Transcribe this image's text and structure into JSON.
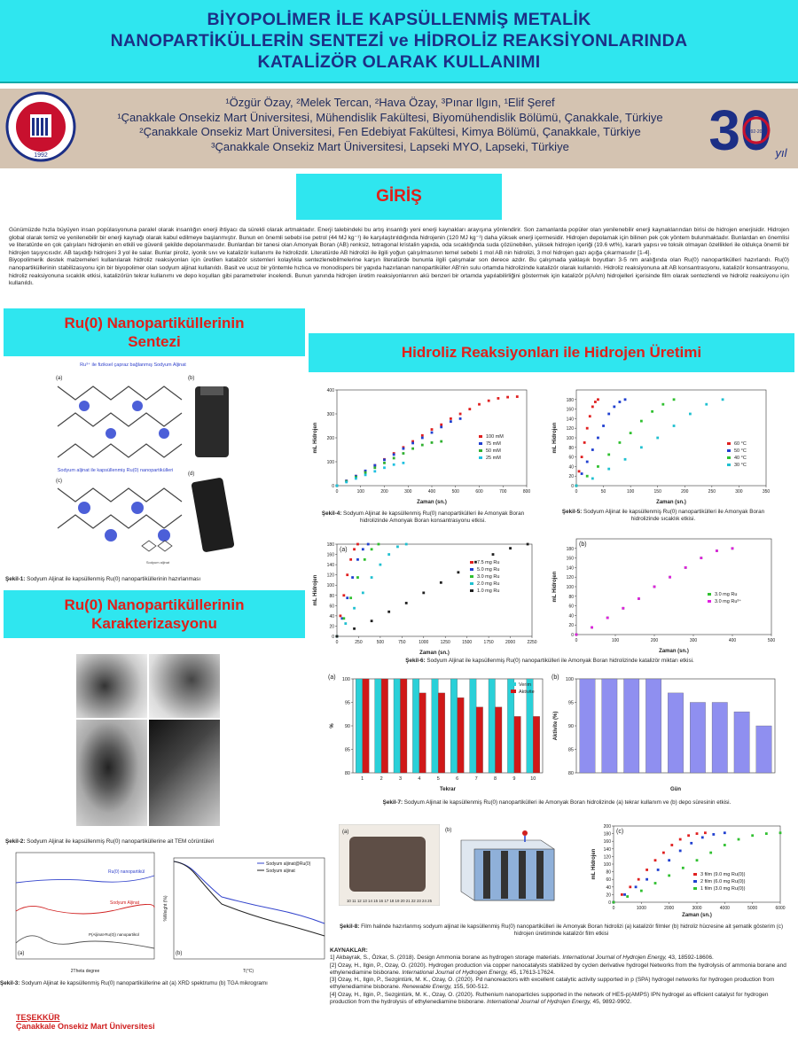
{
  "title": "BİYOPOLİMER İLE KAPSÜLLENMİŞ METALİK\nNANOPARTİKÜLLERİN SENTEZİ ve HİDROLİZ REAKSİYONLARINDA\nKATALİZÖR OLARAK KULLANIMI",
  "authors": "¹Özgür Özay, ²Melek Tercan, ²Hava Özay, ³Pınar Ilgın, ¹Elif Şeref",
  "affiliations": [
    "¹Çanakkale Onsekiz Mart Üniversitesi, Mühendislik Fakültesi, Biyomühendislik Bölümü, Çanakkale, Türkiye",
    "²Çanakkale Onsekiz Mart Üniversitesi, Fen Edebiyat Fakültesi, Kimya Bölümü, Çanakkale, Türkiye",
    "³Çanakkale Onsekiz Mart Üniversitesi, Lapseki MYO, Lapseki, Türkiye"
  ],
  "logo_left_text": "ÇANAKKALE ONSEKİZ MART ÜNİVERSİTESİ",
  "logo_left_year": "1992",
  "logo_right_text": "30",
  "logo_right_sub": "yıl",
  "logo_right_years": "1992-2022",
  "intro": {
    "heading": "GİRİŞ",
    "p1": "Günümüzde hızla büyüyen insan popülasyonuna paralel olarak insanlığın enerji ihtiyacı da sürekli olarak artmaktadır. Enerji talebindeki bu artış insanlığı yeni enerji kaynakları arayışına yönlendirir. Son zamanlarda popüler olan yenilenebilir enerji kaynaklarından birisi de hidrojen enerjisidir. Hidrojen global olarak temiz ve yenilenebilir bir enerji kaynağı olarak kabul edilmeye başlanmıştır. Bunun en önemli sebebi ise petrol (44 MJ kg⁻¹) ile karşılaştırıldığında hidrojenin (120 MJ kg⁻¹) daha yüksek enerji içermesidir. Hidrojen depolamak için bilinen pek çok yöntem bulunmaktadır. Bunlardan en önemlisi ve literatürde en çok çalışılanı hidrojenin en etkili ve güvenli şekilde depolanmasıdır. Bunlardan bir tanesi olan Amonyak Boran (AB) renksiz, tetragonal kristalin yapıda, oda sıcaklığında suda çözünebilen, yüksek hidrojen içeriği (19.6 wt%), kararlı yapısı ve toksik olmayan özellikleri ile oldukça önemli bir hidrojen taşıyıcısıdır. AB taşıdığı hidrojeni 3 yol ile salar. Bunlar piroliz, iyonik sıvı ve katalizör kullanımı ile hidrolizdir. Literatürde AB hidrolizi ile ilgili yoğun çalışılmasının temel sebebi 1 mol AB nin hidrolizi, 3 mol hidrojen gazı açığa çıkarmasıdır [1-4].",
    "p2": "Biyopolimerik destek malzemeleri kullanılarak hidroliz reaksiyonları için üretilen katalizör sistemleri kolaylıkla sentezlenebilmelerine karşın literatürde bununla ilgili çalışmalar son derece azdır. Bu çalışmada yaklaşık boyutları 3-5 nm aralığında olan Ru(0) nanopartikülleri hazırlandı. Ru(0) nanopartiküllerinin stabilizasyonu için bir biyopolimer olan sodyum aljinat kullanıldı. Basit ve ucuz bir yöntemle hızlıca ve monodispers bir yapıda hazırlanan nanopartiküller AB'nin sulu ortamda hidrolizinde katalizör olarak kullanıldı. Hidroliz reaksiyonuna alt AB konsantrasyonu, katalizör konsantrasyonu, hidroliz reaksiyonuna sıcaklık etkisi, katalizörün tekrar kullanımı ve depo koşulları gibi parametreler incelendi. Bunun yanında hidrojen üretim reaksiyonlarının akü benzeri bir ortamda yapılabilirliğini göstermek için katalizör p(AAm) hidrojelleri içerisinde film olarak sentezlendi ve hidroliz reaksiyonu için kullanıldı."
  },
  "sec_synthesis": "Ru(0) Nanopartiküllerinin\nSentezi",
  "sec_characterization": "Ru(0) Nanopartiküllerinin\nKarakterizasyonu",
  "sec_hydrolysis": "Hidroliz Reaksiyonları ile Hidrojen Üretimi",
  "fig1": {
    "label_a": "Ru³⁺ ile fiziksel çapraz bağlanmış Sodyum Aljinat",
    "label_c": "Sodyum aljinat ile kapsüllenmiş Ru(0) nanopartikülleri",
    "small_label": "Sodyum aljinat",
    "caption_bold": "Şekil-1:",
    "caption": "Sodyum Aljinat ile kapsüllenmiş Ru(0) nanopartiküllerinin hazırlanması"
  },
  "fig2": {
    "caption_bold": "Şekil-2:",
    "caption": "Sodyum Aljinat ile kapsüllenmiş Ru(0) nanopartiküllerine ait TEM cörüntüleri"
  },
  "fig3": {
    "caption_bold": "Şekil-3:",
    "caption": "Sodyum Aljinat ile kapsüllenmiş Ru(0) nanopartiküllerine ait (a) XRD spektrumu (b) TGA mikrogramı",
    "xrd_labels": [
      "Ru(0) nanopartikül",
      "Sodyum Aljinat",
      "P(Aljinat-Ru(0)) nanopartikül"
    ],
    "xrd_xlabel": "2Theta degree",
    "tga_legend": [
      "Sodyum aljinat@Ru(0)",
      "Sodyum aljinat"
    ],
    "tga_xlabel": "T(°C)",
    "tga_ylabel": "%Weight (%)",
    "tga_xticks": [
      "0",
      "100",
      "200",
      "300",
      "400",
      "500",
      "600",
      "700",
      "800",
      "900"
    ],
    "xrd_xticks": [
      "10",
      "20",
      "30",
      "40",
      "50",
      "60",
      "70",
      "80",
      "90"
    ]
  },
  "fig4": {
    "caption_bold": "Şekil-4:",
    "caption": "Sodyum Aljinat ile kapsüllenmiş Ru(0) nanopartikülleri ile Amonyak Boran hidrolizinde Amonyak Boran konsantrasyonu etkisi."
  },
  "fig5": {
    "caption_bold": "Şekil-5:",
    "caption": "Sodyum Aljinat ile kapsüllenmiş Ru(0) nanopartikülleri ile Amonyak Boran hidrolizinde sıcaklık etkisi."
  },
  "fig6": {
    "caption_bold": "Şekil-6:",
    "caption": "Sodyum Aljinat ile kapsüllenmiş Ru(0) nanopartikülleri ile Amonyak Boran hidrolizinde katalizör miktarı etkisi."
  },
  "fig7": {
    "caption_bold": "Şekil-7:",
    "caption": "Sodyum Aljinat ile kapsüllenmiş Ru(0) nanopartikülleri ile Amonyak Boran hidrolizinde (a) tekrar kullanım ve (b) depo süresinin etkisi."
  },
  "fig8": {
    "caption_bold": "Şekil-8:",
    "caption": "Film halinde hazırlanmış sodyum aljinat ile kapsüllenmiş Ru(0) nanopartikülleri ile Amonyak Boran hidrolizi (a) katalizör filmler (b) hidroliz hücresine ait şematik gösterim (c) hidrojen üretiminde katalizör film etkisi",
    "ruler": "10  11  12  13  14  15  16  17  18  19  20  21  22  23  24  25"
  },
  "refs": {
    "heading": "KAYNAKLAR:",
    "items": [
      [
        "1] Akbayrak, S., Özkar, S. (2018). Design Ammonia borane as hydrogen storage materials. ",
        "International Journal of Hydrojen Energy,",
        " 43, 18592-18606."
      ],
      [
        "[2] Ozay, H., Ilgin, P., Ozay, O. (2020). Hydrogen production via copper nanocatalysts stabilized by cyclen derivative hydrogel Networks from the hydrolysis of ammonia borane and ethylenediamine bisborane. ",
        "International Journal of Hydrogen Energy,",
        " 45, 17613-17624."
      ],
      [
        "[3] Ozay, H., Ilgin, P., Sezgintürk, M. K., Ozay, O. (2020). Pd nanoreactors with excellent catalytic activity supported in p (SPA) hydrogel networks for hydrogen production from ethylenediamine bisborane. ",
        "Renewable Energy,",
        " 155, 500-512."
      ],
      [
        "[4] Ozay, H., Ilgin, P., Sezgintürk, M. K., Ozay, O. (2020). Ruthenium nanoparticles supported in the network of HES-p(AMPS) IPN hydrogel as efficient catalyst for hydrogen production from the hydrolysis of ethylenediamine bisborane. ",
        "International Journal of Hydrojen Energy,",
        " 45, 9892-9902."
      ]
    ]
  },
  "thanks": {
    "heading": "TEŞEKKÜR",
    "text": "Çanakkale Onsekiz Mart Üniversitesi"
  },
  "chart_data": [
    {
      "id": "fig4",
      "type": "scatter",
      "xlabel": "Zaman (sn.)",
      "ylabel": "mL Hidrojen",
      "xlim": [
        0,
        800
      ],
      "ylim": [
        0,
        400
      ],
      "xticks": [
        0,
        100,
        200,
        300,
        400,
        500,
        600,
        700,
        800
      ],
      "yticks": [
        0,
        100,
        200,
        300,
        400
      ],
      "series": [
        {
          "name": "100 mM",
          "color": "#e02020",
          "x": [
            0,
            40,
            80,
            120,
            160,
            200,
            240,
            280,
            320,
            360,
            400,
            440,
            480,
            520,
            560,
            600,
            640,
            680,
            720,
            760
          ],
          "y": [
            0,
            20,
            40,
            60,
            85,
            110,
            135,
            160,
            185,
            210,
            235,
            255,
            280,
            300,
            320,
            340,
            355,
            365,
            370,
            372
          ]
        },
        {
          "name": "75 mM",
          "color": "#2040d0",
          "x": [
            0,
            40,
            80,
            120,
            160,
            200,
            240,
            280,
            320,
            360,
            400,
            440,
            480,
            520
          ],
          "y": [
            0,
            20,
            40,
            62,
            85,
            108,
            130,
            155,
            178,
            200,
            222,
            245,
            268,
            280
          ]
        },
        {
          "name": "50 mM",
          "color": "#30b030",
          "x": [
            0,
            40,
            80,
            120,
            160,
            200,
            240,
            280,
            320,
            360,
            400,
            440
          ],
          "y": [
            0,
            18,
            36,
            55,
            75,
            95,
            115,
            135,
            155,
            170,
            180,
            185
          ]
        },
        {
          "name": "25 mM",
          "color": "#20c0e0",
          "x": [
            0,
            40,
            80,
            120,
            160,
            200,
            240,
            280
          ],
          "y": [
            0,
            15,
            30,
            45,
            60,
            75,
            88,
            95
          ]
        }
      ]
    },
    {
      "id": "fig5",
      "type": "scatter",
      "xlabel": "Zaman (sn.)",
      "ylabel": "mL Hidrojen",
      "xlim": [
        0,
        350
      ],
      "ylim": [
        0,
        200
      ],
      "xticks": [
        0,
        50,
        100,
        150,
        200,
        250,
        300,
        350
      ],
      "yticks": [
        0,
        20,
        40,
        60,
        80,
        100,
        120,
        140,
        160,
        180
      ],
      "series": [
        {
          "name": "60 °C",
          "color": "#e02020",
          "x": [
            0,
            5,
            10,
            15,
            20,
            25,
            30,
            35,
            40
          ],
          "y": [
            0,
            30,
            60,
            90,
            120,
            145,
            165,
            175,
            180
          ]
        },
        {
          "name": "50 °C",
          "color": "#2040d0",
          "x": [
            0,
            10,
            20,
            30,
            40,
            50,
            60,
            70,
            80,
            90
          ],
          "y": [
            0,
            25,
            50,
            75,
            100,
            125,
            150,
            165,
            175,
            180
          ]
        },
        {
          "name": "40 °C",
          "color": "#30c030",
          "x": [
            0,
            20,
            40,
            60,
            80,
            100,
            120,
            140,
            160,
            180
          ],
          "y": [
            0,
            20,
            40,
            65,
            90,
            110,
            135,
            155,
            170,
            180
          ]
        },
        {
          "name": "30 °C",
          "color": "#20c0d0",
          "x": [
            0,
            30,
            60,
            90,
            120,
            150,
            180,
            210,
            240,
            270
          ],
          "y": [
            0,
            15,
            35,
            55,
            80,
            100,
            125,
            150,
            170,
            180
          ]
        }
      ]
    },
    {
      "id": "fig6a",
      "type": "scatter",
      "xlabel": "Zaman (sn.)",
      "ylabel": "mL Hidrojen",
      "xlim": [
        0,
        2250
      ],
      "ylim": [
        0,
        180
      ],
      "xticks": [
        0,
        250,
        500,
        750,
        1000,
        1250,
        1500,
        1750,
        2000,
        2250
      ],
      "yticks": [
        0,
        20,
        40,
        60,
        80,
        100,
        120,
        140,
        160,
        180
      ],
      "series": [
        {
          "name": "7.5 mg Ru",
          "color": "#e02020",
          "x": [
            0,
            40,
            80,
            120,
            160,
            200,
            240
          ],
          "y": [
            0,
            40,
            80,
            120,
            150,
            170,
            180
          ]
        },
        {
          "name": "5.0 mg Ru",
          "color": "#2040d0",
          "x": [
            0,
            60,
            120,
            180,
            240,
            300,
            360
          ],
          "y": [
            0,
            35,
            75,
            115,
            150,
            170,
            180
          ]
        },
        {
          "name": "3.0 mg Ru",
          "color": "#30c030",
          "x": [
            0,
            80,
            160,
            240,
            320,
            400,
            480
          ],
          "y": [
            0,
            35,
            75,
            115,
            150,
            170,
            180
          ]
        },
        {
          "name": "2.0 mg Ru",
          "color": "#20c0d0",
          "x": [
            0,
            100,
            200,
            300,
            400,
            500,
            600,
            700,
            800
          ],
          "y": [
            0,
            25,
            55,
            85,
            115,
            140,
            160,
            175,
            180
          ]
        },
        {
          "name": "1.0 mg Ru",
          "color": "#202020",
          "x": [
            0,
            200,
            400,
            600,
            800,
            1000,
            1200,
            1400,
            1600,
            1800,
            2000,
            2200
          ],
          "y": [
            0,
            15,
            30,
            48,
            65,
            85,
            105,
            125,
            145,
            160,
            172,
            180
          ]
        }
      ]
    },
    {
      "id": "fig6b",
      "type": "scatter",
      "xlabel": "Zaman (sn.)",
      "ylabel": "mL Hidrojen",
      "xlim": [
        0,
        500
      ],
      "ylim": [
        0,
        200
      ],
      "xticks": [
        0,
        100,
        200,
        300,
        400,
        500
      ],
      "yticks": [
        0,
        20,
        40,
        60,
        80,
        100,
        120,
        140,
        160,
        180
      ],
      "series": [
        {
          "name": "3.0 mg Ru",
          "color": "#30c030",
          "x": [
            0,
            40,
            80,
            120,
            160,
            200,
            240,
            280,
            320,
            360,
            400
          ],
          "y": [
            0,
            15,
            35,
            55,
            75,
            100,
            120,
            140,
            160,
            175,
            180
          ]
        },
        {
          "name": "3.0 mg Ru³⁺",
          "color": "#e020e0",
          "x": [
            0,
            40,
            80,
            120,
            160,
            200,
            240,
            280,
            320,
            360,
            400
          ],
          "y": [
            0,
            15,
            35,
            55,
            75,
            100,
            120,
            140,
            160,
            175,
            180
          ]
        }
      ]
    },
    {
      "id": "fig7a",
      "type": "bar",
      "xlabel": "Tekrar",
      "ylabel": "%",
      "ylim": [
        80,
        100
      ],
      "yticks": [
        80,
        85,
        90,
        95,
        100
      ],
      "categories": [
        "1",
        "2",
        "3",
        "4",
        "5",
        "6",
        "7",
        "8",
        "9",
        "10"
      ],
      "series": [
        {
          "name": "Verim",
          "color": "#2ad0d8",
          "values": [
            100,
            100,
            100,
            100,
            100,
            100,
            100,
            100,
            100,
            100
          ]
        },
        {
          "name": "Aktivite",
          "color": "#d01818",
          "values": [
            100,
            100,
            100,
            97,
            97,
            96,
            94,
            94,
            92,
            92
          ]
        }
      ]
    },
    {
      "id": "fig7b",
      "type": "bar",
      "xlabel": "Gün",
      "ylabel": "Aktivite (%)",
      "ylim": [
        80,
        100
      ],
      "yticks": [
        80,
        85,
        90,
        95,
        100
      ],
      "categories": [
        "1",
        "2",
        "3",
        "4",
        "5",
        "6",
        "7",
        "8",
        "9"
      ],
      "series": [
        {
          "name": "Aktivite",
          "color": "#8f8ff0",
          "values": [
            100,
            100,
            100,
            100,
            97,
            95,
            95,
            93,
            90
          ]
        }
      ]
    },
    {
      "id": "fig8c",
      "type": "scatter",
      "xlabel": "Zaman (sn.)",
      "ylabel": "mL Hidrojen",
      "xlim": [
        0,
        6000
      ],
      "ylim": [
        0,
        200
      ],
      "xticks": [
        0,
        1000,
        2000,
        3000,
        4000,
        5000,
        6000
      ],
      "yticks": [
        0,
        20,
        40,
        60,
        80,
        100,
        120,
        140,
        160,
        180,
        200
      ],
      "series": [
        {
          "name": "3 film (9.0 mg Ru(0))",
          "color": "#e02020",
          "x": [
            0,
            300,
            600,
            900,
            1200,
            1500,
            1800,
            2100,
            2400,
            2700,
            3000,
            3300
          ],
          "y": [
            0,
            20,
            40,
            60,
            85,
            110,
            130,
            150,
            165,
            175,
            180,
            182
          ]
        },
        {
          "name": "2 film (6.0 mg Ru(0))",
          "color": "#2040d0",
          "x": [
            0,
            400,
            800,
            1200,
            1600,
            2000,
            2400,
            2800,
            3200,
            3600,
            4000
          ],
          "y": [
            0,
            20,
            40,
            60,
            85,
            110,
            135,
            155,
            170,
            178,
            182
          ]
        },
        {
          "name": "1 film (3.0 mg Ru(0))",
          "color": "#30c030",
          "x": [
            0,
            500,
            1000,
            1500,
            2000,
            2500,
            3000,
            3500,
            4000,
            4500,
            5000,
            5500,
            6000
          ],
          "y": [
            0,
            15,
            30,
            50,
            70,
            90,
            110,
            130,
            150,
            165,
            175,
            180,
            182
          ]
        }
      ]
    }
  ]
}
